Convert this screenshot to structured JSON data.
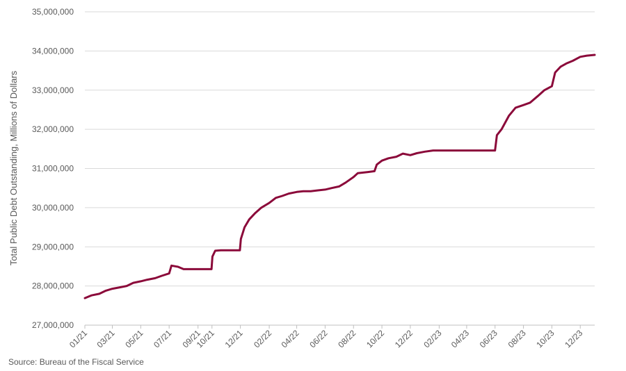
{
  "chart_data": {
    "type": "line",
    "title": "",
    "xlabel": "",
    "ylabel": "Total Public Debt Outstanding, Millions of Dollars",
    "ylim": [
      27000000,
      35000000
    ],
    "yticks": [
      "27,000,000",
      "28,000,000",
      "29,000,000",
      "30,000,000",
      "31,000,000",
      "32,000,000",
      "33,000,000",
      "34,000,000",
      "35,000,000"
    ],
    "ytick_values": [
      27000000,
      28000000,
      29000000,
      30000000,
      31000000,
      32000000,
      33000000,
      34000000,
      35000000
    ],
    "xticks": [
      "01/21",
      "03/21",
      "05/21",
      "07/21",
      "09/21",
      "10/21",
      "12/21",
      "02/22",
      "04/22",
      "06/22",
      "08/22",
      "10/22",
      "12/22",
      "02/23",
      "04/23",
      "06/23",
      "08/23",
      "10/23",
      "12/23"
    ],
    "xtick_dates": [
      "2021-01-01",
      "2021-03-01",
      "2021-05-01",
      "2021-07-01",
      "2021-09-01",
      "2021-10-01",
      "2021-12-01",
      "2022-02-01",
      "2022-04-01",
      "2022-06-01",
      "2022-08-01",
      "2022-10-01",
      "2022-12-01",
      "2023-02-01",
      "2023-04-01",
      "2023-06-01",
      "2023-08-01",
      "2023-10-01",
      "2023-12-01"
    ],
    "grid": true,
    "line_color": "#8B0A3A",
    "series": [
      {
        "name": "",
        "points": [
          [
            "2021-01-01",
            27690000
          ],
          [
            "2021-01-15",
            27760000
          ],
          [
            "2021-02-01",
            27800000
          ],
          [
            "2021-02-15",
            27880000
          ],
          [
            "2021-03-01",
            27930000
          ],
          [
            "2021-03-15",
            27960000
          ],
          [
            "2021-04-01",
            28000000
          ],
          [
            "2021-04-15",
            28080000
          ],
          [
            "2021-05-01",
            28120000
          ],
          [
            "2021-05-15",
            28160000
          ],
          [
            "2021-06-01",
            28200000
          ],
          [
            "2021-06-15",
            28260000
          ],
          [
            "2021-07-01",
            28320000
          ],
          [
            "2021-07-06",
            28520000
          ],
          [
            "2021-07-20",
            28490000
          ],
          [
            "2021-08-01",
            28430000
          ],
          [
            "2021-09-15",
            28430000
          ],
          [
            "2021-09-30",
            28430000
          ],
          [
            "2021-10-02",
            28750000
          ],
          [
            "2021-10-08",
            28900000
          ],
          [
            "2021-10-20",
            28910000
          ],
          [
            "2021-11-15",
            28910000
          ],
          [
            "2021-11-30",
            28910000
          ],
          [
            "2021-12-02",
            29200000
          ],
          [
            "2021-12-10",
            29500000
          ],
          [
            "2021-12-20",
            29700000
          ],
          [
            "2022-01-01",
            29850000
          ],
          [
            "2022-01-15",
            30000000
          ],
          [
            "2022-02-01",
            30120000
          ],
          [
            "2022-02-15",
            30250000
          ],
          [
            "2022-03-01",
            30300000
          ],
          [
            "2022-03-15",
            30360000
          ],
          [
            "2022-04-01",
            30400000
          ],
          [
            "2022-04-15",
            30420000
          ],
          [
            "2022-05-01",
            30420000
          ],
          [
            "2022-05-15",
            30440000
          ],
          [
            "2022-06-01",
            30460000
          ],
          [
            "2022-06-15",
            30500000
          ],
          [
            "2022-07-01",
            30540000
          ],
          [
            "2022-07-15",
            30640000
          ],
          [
            "2022-08-01",
            30780000
          ],
          [
            "2022-08-10",
            30880000
          ],
          [
            "2022-09-01",
            30910000
          ],
          [
            "2022-09-15",
            30930000
          ],
          [
            "2022-09-20",
            31100000
          ],
          [
            "2022-10-01",
            31200000
          ],
          [
            "2022-10-15",
            31260000
          ],
          [
            "2022-11-01",
            31300000
          ],
          [
            "2022-11-15",
            31380000
          ],
          [
            "2022-12-01",
            31340000
          ],
          [
            "2022-12-15",
            31390000
          ],
          [
            "2023-01-01",
            31430000
          ],
          [
            "2023-01-19",
            31460000
          ],
          [
            "2023-02-15",
            31460000
          ],
          [
            "2023-04-01",
            31460000
          ],
          [
            "2023-05-01",
            31460000
          ],
          [
            "2023-06-01",
            31460000
          ],
          [
            "2023-06-05",
            31850000
          ],
          [
            "2023-06-15",
            32000000
          ],
          [
            "2023-07-01",
            32350000
          ],
          [
            "2023-07-15",
            32550000
          ],
          [
            "2023-08-01",
            32620000
          ],
          [
            "2023-08-15",
            32680000
          ],
          [
            "2023-09-01",
            32850000
          ],
          [
            "2023-09-15",
            33000000
          ],
          [
            "2023-10-01",
            33100000
          ],
          [
            "2023-10-08",
            33450000
          ],
          [
            "2023-10-20",
            33600000
          ],
          [
            "2023-11-01",
            33680000
          ],
          [
            "2023-11-15",
            33750000
          ],
          [
            "2023-12-01",
            33850000
          ],
          [
            "2023-12-15",
            33880000
          ],
          [
            "2024-01-01",
            33900000
          ]
        ]
      }
    ]
  },
  "source_note": "Source: Bureau of the Fiscal Service"
}
